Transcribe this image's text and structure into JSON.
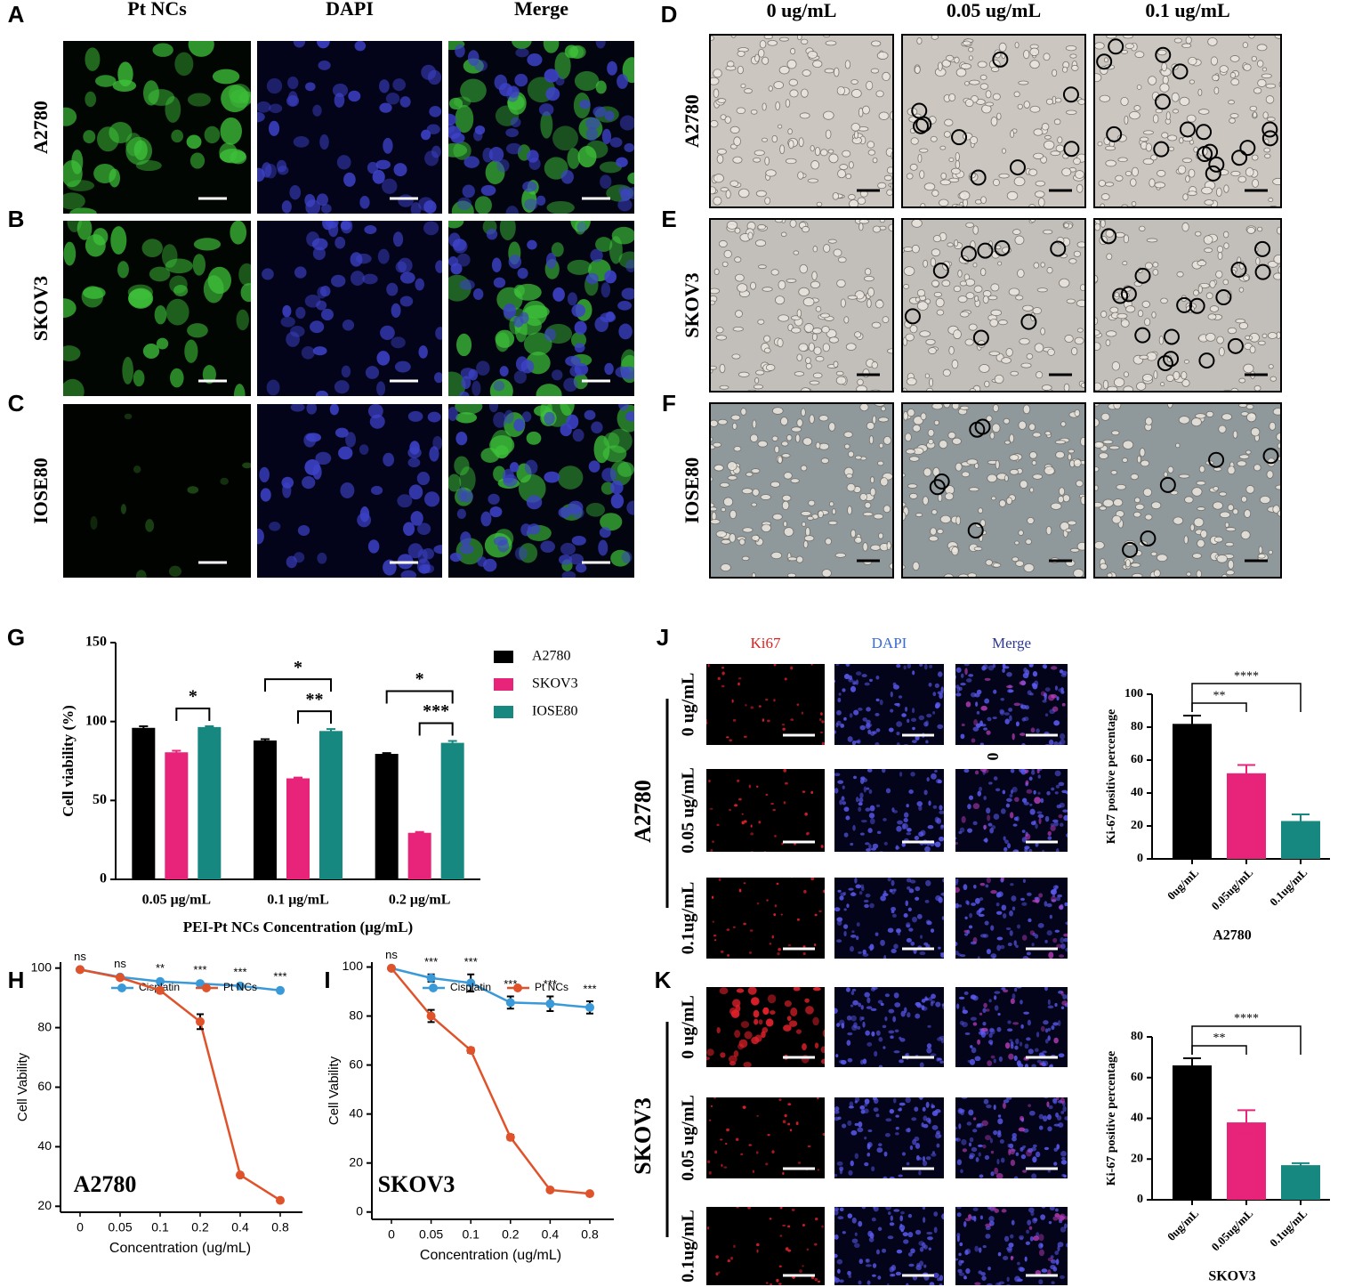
{
  "panel_labels": [
    "A",
    "B",
    "C",
    "D",
    "E",
    "F",
    "G",
    "H",
    "I",
    "J",
    "K"
  ],
  "fluorescence": {
    "columns": [
      "Pt NCs",
      "DAPI",
      "Merge"
    ],
    "rows": [
      "A2780",
      "SKOV3",
      "IOSE80"
    ]
  },
  "brightfield": {
    "columns": [
      "0 ug/mL",
      "0.05 ug/mL",
      "0.1 ug/mL"
    ],
    "rows": [
      "A2780",
      "SKOV3",
      "IOSE80"
    ]
  },
  "ki67": [
    {
      "group": "A2780",
      "columns": [
        "Ki67",
        "DAPI",
        "Merge"
      ],
      "rows": [
        "0 ug/mL",
        "0.05 ug/mL",
        "0.1ug/mL"
      ],
      "stray_label": "0"
    },
    {
      "group": "SKOV3",
      "rows": [
        "0 ug/mL",
        "0.05 ug/mL",
        "0.1ug/mL"
      ]
    }
  ],
  "chart_data": [
    {
      "type": "bar",
      "ylabel": "Cell viability (%)",
      "xlabel": "PEI-Pt NCs Concentration (μg/mL)",
      "categories": [
        "0.05 μg/mL",
        "0.1 μg/mL",
        "0.2 μg/mL"
      ],
      "series": [
        {
          "name": "A2780",
          "color": "#000000",
          "values": [
            96,
            88,
            79.5
          ],
          "errors": [
            1,
            0.8,
            0.5
          ]
        },
        {
          "name": "SKOV3",
          "color": "#e8237a",
          "values": [
            80.5,
            64,
            29.5
          ],
          "errors": [
            1,
            0.5,
            0.5
          ]
        },
        {
          "name": "IOSE80",
          "color": "#17887f",
          "values": [
            96.5,
            94,
            86.5
          ],
          "errors": [
            0.5,
            1.2,
            1.2
          ]
        }
      ],
      "ylim": [
        0,
        150
      ],
      "yticks": [
        0,
        50,
        100,
        150
      ],
      "legend": "right",
      "significance": [
        {
          "label": "*",
          "category": 0,
          "between": [
            1,
            2
          ]
        },
        {
          "label": "**",
          "category": 1,
          "between": [
            1,
            2
          ]
        },
        {
          "label": "*",
          "category": 1,
          "between": [
            0,
            2
          ]
        },
        {
          "label": "***",
          "category": 2,
          "between": [
            1,
            2
          ]
        },
        {
          "label": "*",
          "category": 2,
          "between": [
            0,
            2
          ]
        }
      ]
    },
    {
      "type": "line",
      "ylabel": "Cell Vability",
      "xlabel": "Concentration (ug/mL)",
      "annotation": "A2780",
      "categories": [
        "0",
        "0.05",
        "0.1",
        "0.2",
        "0.4",
        "0.8"
      ],
      "series": [
        {
          "name": "Cisplatin",
          "color": "#3a9ad9",
          "values": [
            99.5,
            97,
            95.5,
            94.8,
            94,
            92.5
          ],
          "errors": [
            0.3,
            0.3,
            0.4,
            0.4,
            0.5,
            0.5
          ]
        },
        {
          "name": "Pt NCs",
          "color": "#e0522a",
          "values": [
            99.5,
            96.8,
            92.5,
            82,
            30.5,
            22
          ],
          "errors": [
            0.3,
            0.5,
            0.8,
            2.5,
            0.5,
            0.3
          ]
        }
      ],
      "significance_labels": [
        "ns",
        "ns",
        "**",
        "***",
        "***",
        "***"
      ],
      "ylim": [
        18,
        102
      ],
      "yticks": [
        20,
        40,
        60,
        80,
        100
      ],
      "legend": "top"
    },
    {
      "type": "line",
      "ylabel": "Cell Vability",
      "xlabel": "Concentration (ug/mL)",
      "annotation": "SKOV3",
      "categories": [
        "0",
        "0.05",
        "0.1",
        "0.2",
        "0.4",
        "0.8"
      ],
      "series": [
        {
          "name": "Cisplatin",
          "color": "#3a9ad9",
          "values": [
            99.5,
            95.5,
            93.5,
            85.5,
            85,
            83.5
          ],
          "errors": [
            0.5,
            1.5,
            3.5,
            2.5,
            3,
            2.5
          ]
        },
        {
          "name": "Pt NCs",
          "color": "#e0522a",
          "values": [
            99.5,
            80,
            66,
            30.5,
            9,
            7.5
          ],
          "errors": [
            0.5,
            2.5,
            1,
            1,
            0.5,
            0.5
          ]
        }
      ],
      "significance_labels": [
        "ns",
        "***",
        "***",
        "***",
        "***",
        "***"
      ],
      "ylim": [
        -3,
        102
      ],
      "yticks": [
        0,
        20,
        40,
        60,
        80,
        100
      ],
      "legend": "top"
    },
    {
      "type": "bar",
      "ylabel": "Ki-67 positive percentage",
      "xlabel": "A2780",
      "categories": [
        "0ug/mL",
        "0.05ug/mL",
        "0.1ug/mL"
      ],
      "values": [
        82,
        52,
        23
      ],
      "errors": [
        5,
        5,
        4
      ],
      "colors": [
        "#000000",
        "#e8237a",
        "#17887f"
      ],
      "ylim": [
        0,
        100
      ],
      "yticks": [
        0,
        20,
        40,
        60,
        80,
        100
      ],
      "significance": [
        {
          "label": "**",
          "between": [
            0,
            1
          ]
        },
        {
          "label": "****",
          "between": [
            0,
            2
          ]
        }
      ]
    },
    {
      "type": "bar",
      "ylabel": "Ki-67 positive percentage",
      "xlabel": "SKOV3",
      "categories": [
        "0ug/mL",
        "0.05ug/mL",
        "0.1ug/mL"
      ],
      "values": [
        66,
        38,
        17
      ],
      "errors": [
        3.5,
        6,
        1
      ],
      "colors": [
        "#000000",
        "#e8237a",
        "#17887f"
      ],
      "ylim": [
        0,
        80
      ],
      "yticks": [
        0,
        20,
        40,
        60,
        80
      ],
      "significance": [
        {
          "label": "**",
          "between": [
            0,
            1
          ]
        },
        {
          "label": "****",
          "between": [
            0,
            2
          ]
        }
      ]
    }
  ]
}
